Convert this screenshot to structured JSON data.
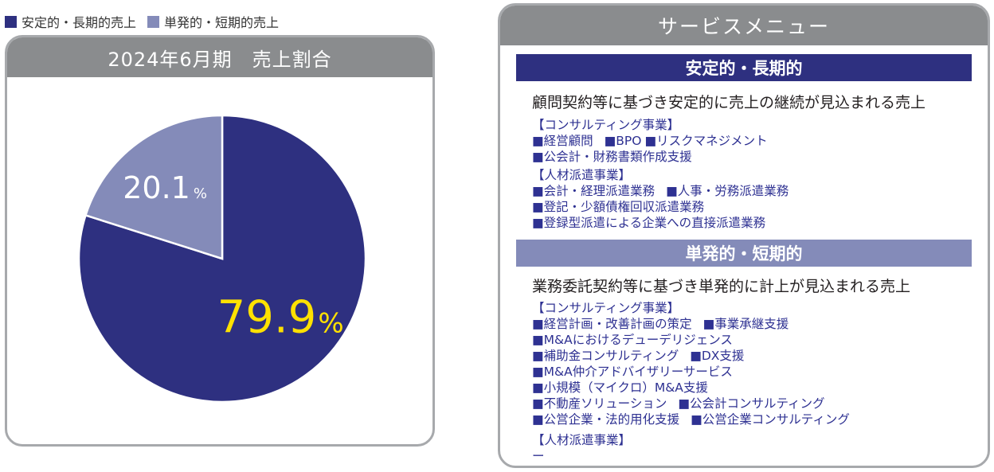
{
  "legend": [
    {
      "label": "安定的・長期的売上",
      "color": "#2e3080"
    },
    {
      "label": "単発的・短期的売上",
      "color": "#848bb9"
    }
  ],
  "chart_panel": {
    "title": "2024年6月期　売上割合"
  },
  "chart_data": {
    "type": "pie",
    "title": "2024年6月期　売上割合",
    "slices": [
      {
        "name": "安定的・長期的売上",
        "value": 79.9,
        "label": "79.9",
        "unit": "%",
        "color": "#2e3080",
        "label_color": "#ffe100"
      },
      {
        "name": "単発的・短期的売上",
        "value": 20.1,
        "label": "20.1",
        "unit": "%",
        "color": "#848bb9",
        "label_color": "#ffffff"
      }
    ],
    "start_angle_deg": 0,
    "direction": "clockwise"
  },
  "service_menu": {
    "title": "サービスメニュー",
    "sections": [
      {
        "heading": "安定的・長期的",
        "color": "#2e3080",
        "description": "顧問契約等に基づき安定的に売上の継続が見込まれる売上",
        "groups": [
          {
            "title": "【コンサルティング事業】",
            "lines": [
              [
                "■経営顧問",
                "■BPO",
                "■リスクマネジメント"
              ],
              [
                "■公会計・財務書類作成支援"
              ]
            ]
          },
          {
            "title": "【人材派遣事業】",
            "lines": [
              [
                "■会計・経理派遣業務",
                "■人事・労務派遣業務"
              ],
              [
                "■登記・少額債権回収派遣業務"
              ],
              [
                "■登録型派遣による企業への直接派遣業務"
              ]
            ]
          }
        ]
      },
      {
        "heading": "単発的・短期的",
        "color": "#848bb9",
        "description": "業務委託契約等に基づき単発的に計上が見込まれる売上",
        "groups": [
          {
            "title": "【コンサルティング事業】",
            "lines": [
              [
                "■経営計画・改善計画の策定",
                "■事業承継支援"
              ],
              [
                "■M&Aにおけるデューデリジェンス"
              ],
              [
                "■補助金コンサルティング",
                "■DX支援"
              ],
              [
                "■M&A仲介アドバイザリーサービス"
              ],
              [
                "■小規模（マイクロ）M&A支援"
              ],
              [
                "■不動産ソリューション",
                "■公会計コンサルティング"
              ],
              [
                "■公営企業・法的用化支援",
                "■公営企業コンサルティング"
              ]
            ]
          },
          {
            "title": "【人材派遣事業】",
            "lines": [
              [
                "ー"
              ]
            ]
          }
        ]
      }
    ]
  }
}
